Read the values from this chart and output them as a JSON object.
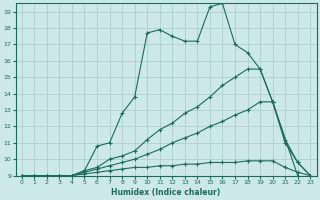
{
  "xlabel": "Humidex (Indice chaleur)",
  "xlim": [
    -0.5,
    23.5
  ],
  "ylim": [
    9,
    19.5
  ],
  "yticks": [
    9,
    10,
    11,
    12,
    13,
    14,
    15,
    16,
    17,
    18,
    19
  ],
  "xticks": [
    0,
    1,
    2,
    3,
    4,
    5,
    6,
    7,
    8,
    9,
    10,
    11,
    12,
    13,
    14,
    15,
    16,
    17,
    18,
    19,
    20,
    21,
    22,
    23
  ],
  "bg_color": "#cde8e8",
  "grid_color": "#aacccc",
  "line_color": "#1a6b5a",
  "lines": [
    {
      "x": [
        0,
        1,
        2,
        3,
        4,
        5,
        6,
        7,
        8,
        9,
        10,
        11,
        12,
        13,
        14,
        15,
        16,
        17,
        18,
        19,
        20,
        21,
        22,
        23
      ],
      "y": [
        9,
        9,
        9,
        9,
        9,
        9.3,
        10.8,
        11.0,
        12.8,
        13.8,
        17.7,
        17.9,
        17.5,
        17.2,
        17.2,
        19.3,
        19.5,
        17.0,
        16.5,
        15.5,
        13.5,
        11.2,
        9.8,
        9.0
      ]
    },
    {
      "x": [
        0,
        1,
        2,
        3,
        4,
        5,
        6,
        7,
        8,
        9,
        10,
        11,
        12,
        13,
        14,
        15,
        16,
        17,
        18,
        19,
        20,
        21,
        22,
        23
      ],
      "y": [
        9,
        9,
        9,
        9,
        9,
        9.3,
        9.5,
        10.0,
        10.2,
        10.5,
        11.2,
        11.8,
        12.2,
        12.8,
        13.2,
        13.8,
        14.5,
        15.0,
        15.5,
        15.5,
        13.5,
        11.0,
        9.8,
        9.0
      ]
    },
    {
      "x": [
        0,
        1,
        2,
        3,
        4,
        5,
        6,
        7,
        8,
        9,
        10,
        11,
        12,
        13,
        14,
        15,
        16,
        17,
        18,
        19,
        20,
        22
      ],
      "y": [
        9,
        9,
        9,
        9,
        9,
        9.2,
        9.4,
        9.6,
        9.8,
        10.0,
        10.3,
        10.6,
        11.0,
        11.3,
        11.6,
        12.0,
        12.3,
        12.7,
        13.0,
        13.5,
        13.5,
        9.0
      ]
    },
    {
      "x": [
        0,
        1,
        2,
        3,
        4,
        5,
        6,
        7,
        8,
        9,
        10,
        11,
        12,
        13,
        14,
        15,
        16,
        17,
        18,
        19,
        20,
        21,
        22,
        23
      ],
      "y": [
        9,
        9,
        9,
        9,
        9,
        9.1,
        9.2,
        9.3,
        9.4,
        9.5,
        9.5,
        9.6,
        9.6,
        9.7,
        9.7,
        9.8,
        9.8,
        9.8,
        9.9,
        9.9,
        9.9,
        9.5,
        9.2,
        9.0
      ]
    }
  ]
}
